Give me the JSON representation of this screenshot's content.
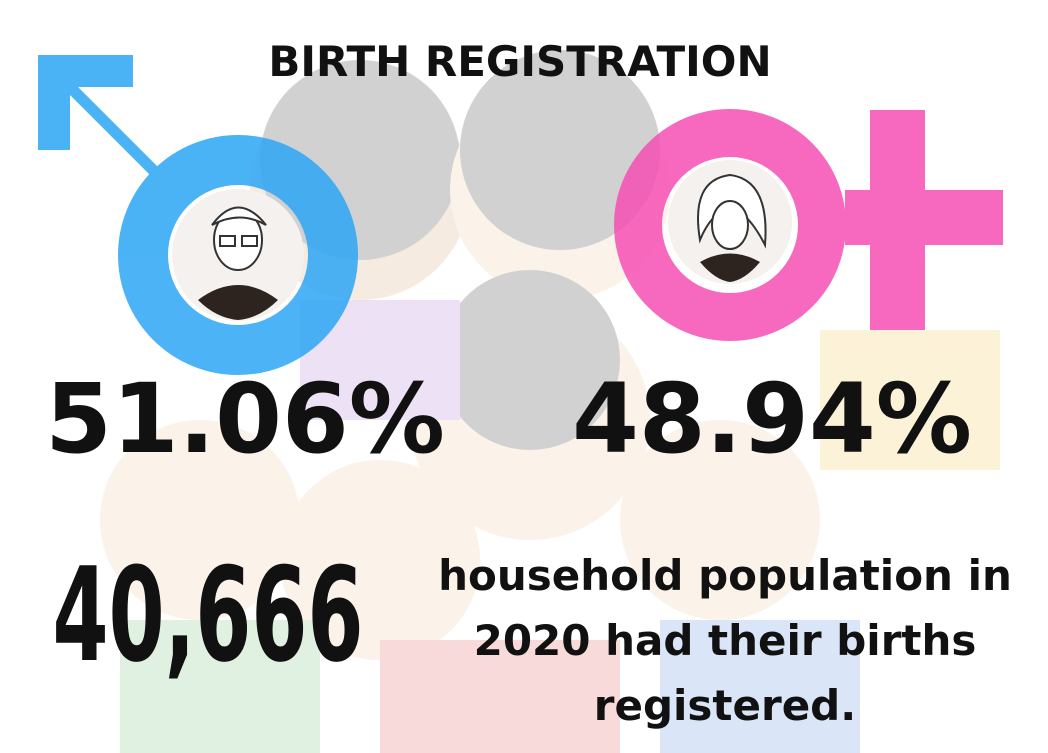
{
  "header": {
    "title": "BIRTH REGISTRATION"
  },
  "stats": {
    "male": "51.06%",
    "female": "48.94%",
    "count": "40,666"
  },
  "description": {
    "lines": [
      "household population in",
      "2020 had their births",
      "registered."
    ]
  }
}
